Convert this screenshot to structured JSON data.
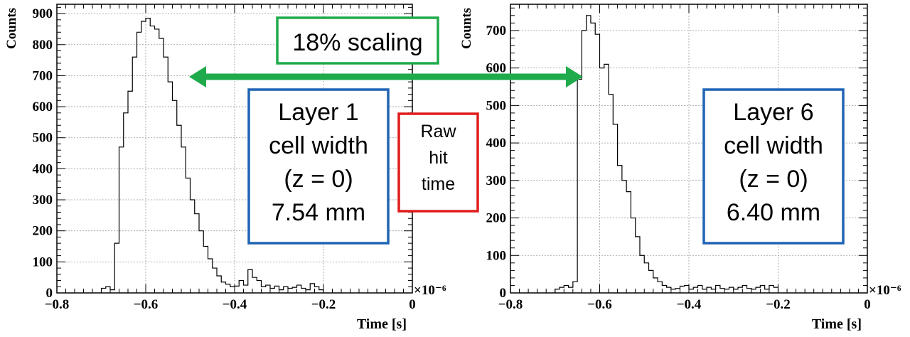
{
  "chart_data": [
    {
      "type": "histogram",
      "ylabel": "Counts",
      "xlabel": "Time [s]",
      "x_multiplier": "×10⁻⁶",
      "xlim": [
        -0.8,
        0.0
      ],
      "ylim": [
        0,
        930
      ],
      "x_ticks": [
        -0.8,
        -0.6,
        -0.4,
        -0.2,
        0
      ],
      "x_tick_labels": [
        "−0.8",
        "−0.6",
        "−0.4",
        "−0.2",
        "0"
      ],
      "y_ticks": [
        0,
        100,
        200,
        300,
        400,
        500,
        600,
        700,
        800,
        900
      ],
      "y_tick_labels": [
        "0",
        "100",
        "200",
        "300",
        "400",
        "500",
        "600",
        "700",
        "800",
        "900"
      ],
      "grid": true,
      "bin_width": 0.01,
      "bin_start": -0.7,
      "values": [
        15,
        20,
        10,
        160,
        470,
        580,
        650,
        760,
        840,
        875,
        885,
        860,
        850,
        820,
        760,
        680,
        620,
        540,
        470,
        370,
        300,
        255,
        200,
        150,
        110,
        80,
        55,
        35,
        28,
        20,
        22,
        40,
        25,
        75,
        50,
        40,
        20,
        25,
        15,
        22,
        10,
        20,
        15,
        18,
        25,
        15,
        10,
        30,
        20,
        10
      ]
    },
    {
      "type": "histogram",
      "ylabel": "Counts",
      "xlabel": "Time [s]",
      "x_multiplier": "×10⁻⁶",
      "xlim": [
        -0.8,
        0.0
      ],
      "ylim": [
        0,
        770
      ],
      "x_ticks": [
        -0.8,
        -0.6,
        -0.4,
        -0.2,
        0
      ],
      "x_tick_labels": [
        "−0.8",
        "−0.6",
        "−0.4",
        "−0.2",
        "0"
      ],
      "y_ticks": [
        0,
        100,
        200,
        300,
        400,
        500,
        600,
        700
      ],
      "y_tick_labels": [
        "0",
        "100",
        "200",
        "300",
        "400",
        "500",
        "600",
        "700"
      ],
      "grid": true,
      "bin_width": 0.01,
      "bin_start": -0.7,
      "values": [
        10,
        15,
        20,
        15,
        30,
        570,
        700,
        740,
        720,
        690,
        600,
        610,
        530,
        450,
        340,
        300,
        270,
        200,
        150,
        100,
        80,
        60,
        40,
        30,
        20,
        15,
        10,
        12,
        18,
        20,
        10,
        15,
        20,
        10,
        15,
        10,
        20,
        12,
        10,
        15,
        10,
        15,
        20,
        12,
        10,
        15,
        20,
        10,
        20,
        15
      ]
    }
  ],
  "annotations": {
    "scaling": "18% scaling",
    "layer1": [
      "Layer 1",
      "cell width",
      "(z = 0)",
      "7.54 mm"
    ],
    "raw": [
      "Raw",
      "hit",
      "time"
    ],
    "layer6": [
      "Layer 6",
      "cell width",
      "(z = 0)",
      "6.40 mm"
    ]
  },
  "colors": {
    "arrow": "#1faa4b",
    "scaling_box": "#1faa4b",
    "layer_box": "#1f64b4",
    "raw_box": "#e11b1b",
    "grid": "#9a9a9a"
  }
}
